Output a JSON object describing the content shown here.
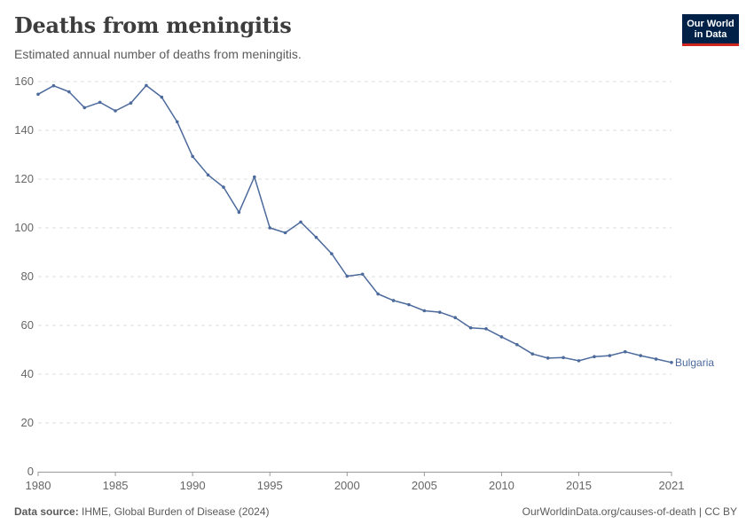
{
  "header": {
    "title": "Deaths from meningitis",
    "subtitle": "Estimated annual number of deaths from meningitis."
  },
  "logo": {
    "line1": "Our World",
    "line2": "in Data"
  },
  "footer": {
    "source_label": "Data source:",
    "source_text": "IHME, Global Burden of Disease (2024)",
    "url": "OurWorldinData.org/causes-of-death | CC BY"
  },
  "colors": {
    "series": "#4c6a9c",
    "grid": "#dddddd",
    "axis": "#666666"
  },
  "chart_data": {
    "type": "line",
    "title": "Deaths from meningitis",
    "subtitle": "Estimated annual number of deaths from meningitis.",
    "xlabel": "",
    "ylabel": "",
    "xlim": [
      1980,
      2021
    ],
    "ylim": [
      0,
      160
    ],
    "y_ticks": [
      0,
      20,
      40,
      60,
      80,
      100,
      120,
      140,
      160
    ],
    "x_ticks": [
      1980,
      1985,
      1990,
      1995,
      2000,
      2005,
      2010,
      2015,
      2021
    ],
    "grid": "horizontal dashed",
    "series": [
      {
        "name": "Bulgaria",
        "x": [
          1980,
          1981,
          1982,
          1983,
          1984,
          1985,
          1986,
          1987,
          1988,
          1989,
          1990,
          1991,
          1992,
          1993,
          1994,
          1995,
          1996,
          1997,
          1998,
          1999,
          2000,
          2001,
          2002,
          2003,
          2004,
          2005,
          2006,
          2007,
          2008,
          2009,
          2010,
          2011,
          2012,
          2013,
          2014,
          2015,
          2016,
          2017,
          2018,
          2019,
          2020,
          2021
        ],
        "values": [
          154.8,
          158.3,
          155.8,
          149.3,
          151.5,
          148.0,
          151.2,
          158.4,
          153.6,
          143.5,
          129.3,
          121.7,
          116.7,
          106.4,
          120.9,
          100.0,
          98.0,
          102.4,
          96.1,
          89.4,
          80.2,
          81.0,
          72.9,
          70.2,
          68.5,
          66.0,
          65.4,
          63.2,
          59.0,
          58.6,
          55.3,
          52.1,
          48.3,
          46.6,
          46.8,
          45.5,
          47.2,
          47.6,
          49.2,
          47.6,
          46.2,
          44.8
        ]
      }
    ]
  }
}
